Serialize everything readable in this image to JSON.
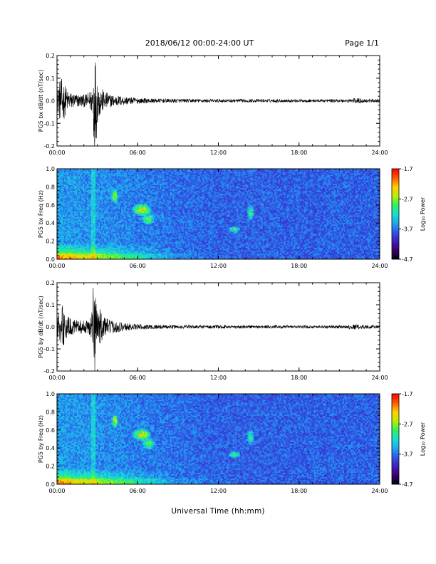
{
  "header": {
    "title": "2018/06/12  00:00-24:00 UT",
    "page": "Page 1/1"
  },
  "x_axis_title": "Universal Time (hh:mm)",
  "colors": {
    "trace": "#000000",
    "colormap": [
      "#000000",
      "#3a006e",
      "#3f1fb8",
      "#2f55e8",
      "#1fa8f0",
      "#14e0d0",
      "#33f060",
      "#b8f000",
      "#ffd000",
      "#ff5a00",
      "#ff0000"
    ]
  },
  "chart_data": [
    {
      "type": "line",
      "ylabel": "PG5 bx dB/dt (nT/sec)",
      "xlim": [
        "00:00",
        "24:00"
      ],
      "x_ticks": [
        "00:00",
        "06:00",
        "12:00",
        "18:00",
        "24:00"
      ],
      "ylim": [
        -0.2,
        0.2
      ],
      "y_ticks": [
        "-0.2",
        "-0.1",
        "0.0",
        "0.1",
        "0.2"
      ],
      "series": [
        {
          "values": [
            [
              0.0,
              0.05
            ],
            [
              0.2,
              0.09
            ],
            [
              0.4,
              0.1
            ],
            [
              0.6,
              0.07
            ],
            [
              0.8,
              0.045
            ],
            [
              1.0,
              0.04
            ],
            [
              1.2,
              0.035
            ],
            [
              1.4,
              0.03
            ],
            [
              1.6,
              0.03
            ],
            [
              1.8,
              0.03
            ],
            [
              2.0,
              0.028
            ],
            [
              2.2,
              0.03
            ],
            [
              2.4,
              0.04
            ],
            [
              2.6,
              0.06
            ],
            [
              2.7,
              0.21
            ],
            [
              2.8,
              0.21
            ],
            [
              2.9,
              0.2
            ],
            [
              3.0,
              0.1
            ],
            [
              3.2,
              0.07
            ],
            [
              3.4,
              0.05
            ],
            [
              3.6,
              0.04
            ],
            [
              3.8,
              0.035
            ],
            [
              4.0,
              0.028
            ],
            [
              4.5,
              0.024
            ],
            [
              5.0,
              0.02
            ],
            [
              5.5,
              0.016
            ],
            [
              6.0,
              0.013
            ],
            [
              7.0,
              0.01
            ],
            [
              8.0,
              0.009
            ],
            [
              10.0,
              0.008
            ],
            [
              12.0,
              0.0075
            ],
            [
              16.0,
              0.007
            ],
            [
              19.0,
              0.0065
            ],
            [
              21.5,
              0.007
            ],
            [
              22.0,
              0.012
            ],
            [
              22.5,
              0.011
            ],
            [
              23.0,
              0.008
            ],
            [
              24.0,
              0.007
            ]
          ]
        }
      ]
    },
    {
      "type": "heatmap",
      "ylabel": "PG5 bx Freq (Hz)",
      "xlim": [
        "00:00",
        "24:00"
      ],
      "x_ticks": [
        "00:00",
        "06:00",
        "12:00",
        "18:00",
        "24:00"
      ],
      "ylim": [
        0.0,
        1.0
      ],
      "y_ticks": [
        "0.0",
        "0.2",
        "0.4",
        "0.6",
        "0.8",
        "1.0"
      ],
      "colorbar": {
        "label": "Log₁₀ Power",
        "range": [
          -4.7,
          -1.7
        ],
        "ticks": [
          "-1.7",
          "-2.7",
          "-3.7",
          "-4.7"
        ]
      }
    },
    {
      "type": "line",
      "ylabel": "PG5 by dB/dt (nT/sec)",
      "xlim": [
        "00:00",
        "24:00"
      ],
      "x_ticks": [
        "00:00",
        "06:00",
        "12:00",
        "18:00",
        "24:00"
      ],
      "ylim": [
        -0.2,
        0.2
      ],
      "y_ticks": [
        "-0.2",
        "-0.1",
        "0.0",
        "0.1",
        "0.2"
      ],
      "series": [
        {
          "values": [
            [
              0.0,
              0.05
            ],
            [
              0.2,
              0.08
            ],
            [
              0.4,
              0.1
            ],
            [
              0.6,
              0.07
            ],
            [
              0.8,
              0.05
            ],
            [
              1.0,
              0.04
            ],
            [
              1.2,
              0.035
            ],
            [
              1.4,
              0.03
            ],
            [
              1.6,
              0.03
            ],
            [
              1.8,
              0.03
            ],
            [
              2.0,
              0.028
            ],
            [
              2.2,
              0.03
            ],
            [
              2.4,
              0.04
            ],
            [
              2.6,
              0.08
            ],
            [
              2.7,
              0.21
            ],
            [
              2.8,
              0.21
            ],
            [
              2.9,
              0.2
            ],
            [
              3.0,
              0.12
            ],
            [
              3.2,
              0.08
            ],
            [
              3.4,
              0.06
            ],
            [
              3.6,
              0.045
            ],
            [
              3.8,
              0.035
            ],
            [
              4.0,
              0.03
            ],
            [
              4.5,
              0.025
            ],
            [
              5.0,
              0.02
            ],
            [
              5.5,
              0.016
            ],
            [
              6.0,
              0.013
            ],
            [
              7.0,
              0.01
            ],
            [
              8.0,
              0.009
            ],
            [
              10.0,
              0.008
            ],
            [
              12.0,
              0.0075
            ],
            [
              16.0,
              0.007
            ],
            [
              19.0,
              0.0065
            ],
            [
              21.5,
              0.007
            ],
            [
              22.0,
              0.012
            ],
            [
              22.5,
              0.011
            ],
            [
              23.0,
              0.008
            ],
            [
              24.0,
              0.007
            ]
          ]
        }
      ]
    },
    {
      "type": "heatmap",
      "ylabel": "PG5 by Freq (Hz)",
      "xlim": [
        "00:00",
        "24:00"
      ],
      "x_ticks": [
        "00:00",
        "06:00",
        "12:00",
        "18:00",
        "24:00"
      ],
      "ylim": [
        0.0,
        1.0
      ],
      "y_ticks": [
        "0.0",
        "0.2",
        "0.4",
        "0.6",
        "0.8",
        "1.0"
      ],
      "colorbar": {
        "label": "Log₁₀ Power",
        "range": [
          -4.7,
          -1.7
        ],
        "ticks": [
          "-1.7",
          "-2.7",
          "-3.7",
          "-4.7"
        ]
      }
    }
  ]
}
